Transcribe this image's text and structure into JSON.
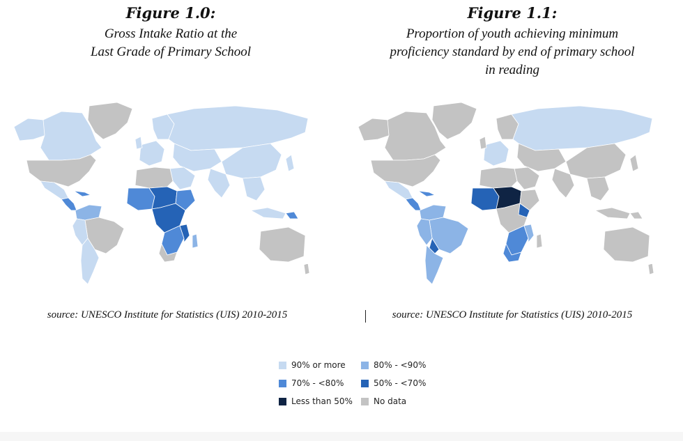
{
  "colors": {
    "c90": "#c6daf1",
    "c80": "#8cb4e6",
    "c70": "#4f89d7",
    "c50": "#2563b6",
    "clt50": "#0f2444",
    "nodata": "#c3c3c3"
  },
  "figures": [
    {
      "label": "Figure 1.0:",
      "title_lines": [
        "Gross Intake Ratio at the",
        "Last Grade of Primary School"
      ],
      "source": "source: UNESCO Institute for Statistics (UIS) 2010-2015"
    },
    {
      "label": "Figure 1.1:",
      "title_lines": [
        "Proportion of youth achieving minimum",
        "proficiency standard by end of primary school",
        "in reading"
      ],
      "source": "source: UNESCO Institute for Statistics (UIS) 2010-2015"
    }
  ],
  "legend": {
    "items": [
      {
        "label": "90% or more",
        "color": "#c6daf1"
      },
      {
        "label": "80% - <90%",
        "color": "#8cb4e6"
      },
      {
        "label": "70% - <80%",
        "color": "#4f89d7"
      },
      {
        "label": "50% - <70%",
        "color": "#2563b6"
      },
      {
        "label": "Less than 50%",
        "color": "#0f2444"
      },
      {
        "label": "No data",
        "color": "#c3c3c3"
      }
    ]
  }
}
